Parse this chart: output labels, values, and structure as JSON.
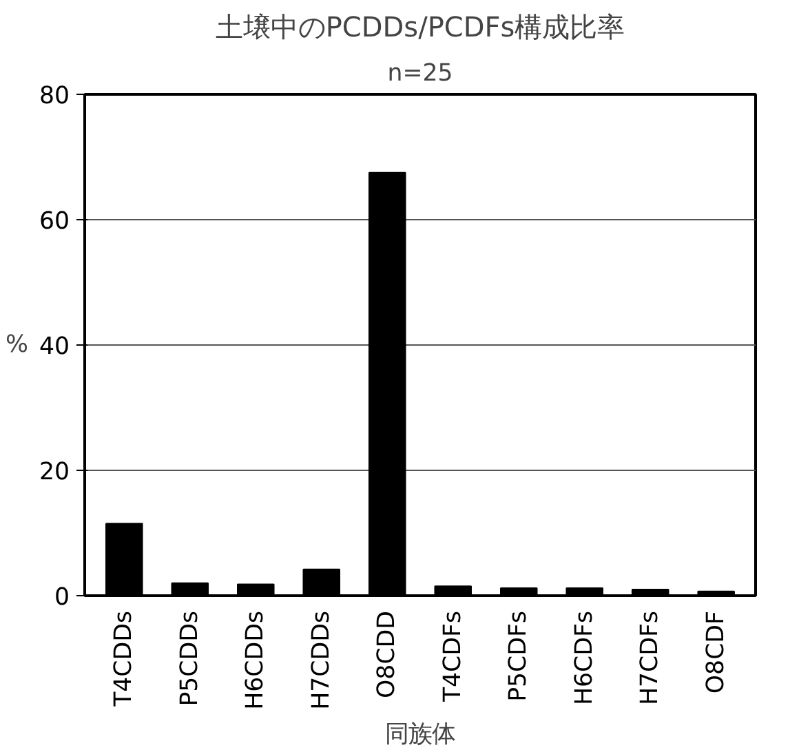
{
  "chart_data": {
    "type": "bar",
    "title": "土壌中のPCDDs/PCDFs構成比率",
    "subtitle": "n=25",
    "xlabel": "同族体",
    "ylabel": "%",
    "categories": [
      "T4CDDs",
      "P5CDDs",
      "H6CDDs",
      "H7CDDs",
      "O8CDD",
      "T4CDFs",
      "P5CDFs",
      "H6CDFs",
      "H7CDFs",
      "O8CDF"
    ],
    "values": [
      11.5,
      2,
      1.8,
      4.2,
      67.5,
      1.5,
      1.2,
      1.2,
      1,
      0.7
    ],
    "color": "#000000",
    "ylim": [
      0,
      80
    ],
    "yticks": [
      0,
      20,
      40,
      60,
      80
    ],
    "grid": "y"
  }
}
